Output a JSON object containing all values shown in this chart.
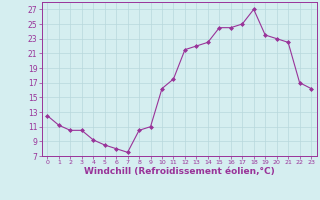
{
  "x": [
    0,
    1,
    2,
    3,
    4,
    5,
    6,
    7,
    8,
    9,
    10,
    11,
    12,
    13,
    14,
    15,
    16,
    17,
    18,
    19,
    20,
    21,
    22,
    23
  ],
  "y": [
    12.5,
    11.2,
    10.5,
    10.5,
    9.2,
    8.5,
    8.0,
    7.5,
    10.5,
    11.0,
    16.2,
    17.5,
    21.5,
    22.0,
    22.5,
    24.5,
    24.5,
    25.0,
    27.0,
    23.5,
    23.0,
    22.5,
    17.0,
    16.2
  ],
  "line_color": "#993399",
  "marker": "D",
  "marker_size": 2,
  "bg_color": "#d5eef0",
  "grid_color": "#b8d8dc",
  "axis_color": "#993399",
  "xlabel": "Windchill (Refroidissement éolien,°C)",
  "xlabel_fontsize": 6.5,
  "ylim": [
    7,
    28
  ],
  "xlim": [
    -0.5,
    23.5
  ],
  "yticks": [
    7,
    9,
    11,
    13,
    15,
    17,
    19,
    21,
    23,
    25,
    27
  ],
  "xticks": [
    0,
    1,
    2,
    3,
    4,
    5,
    6,
    7,
    8,
    9,
    10,
    11,
    12,
    13,
    14,
    15,
    16,
    17,
    18,
    19,
    20,
    21,
    22,
    23
  ]
}
